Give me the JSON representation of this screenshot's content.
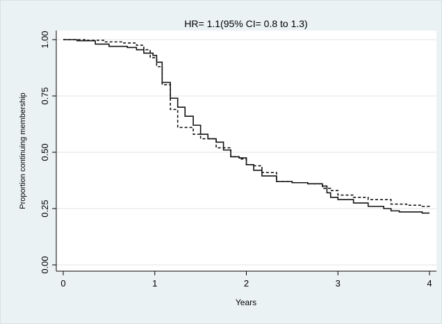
{
  "chart_data": {
    "type": "line",
    "title": "HR= 1.1(95% CI= 0.8 to 1.3)",
    "xlabel": "Years",
    "ylabel": "Proportion continuing membership",
    "xlim": [
      0,
      4
    ],
    "ylim": [
      0,
      1
    ],
    "xticks": [
      "0",
      "1",
      "2",
      "3",
      "4"
    ],
    "yticks": [
      "0.00",
      "0.25",
      "0.50",
      "0.75",
      "1.00"
    ],
    "grid": true,
    "step": true,
    "series": [
      {
        "style": "solid",
        "color": "#111111",
        "points": [
          [
            0.0,
            1.0
          ],
          [
            0.15,
            0.995
          ],
          [
            0.35,
            0.98
          ],
          [
            0.5,
            0.97
          ],
          [
            0.7,
            0.965
          ],
          [
            0.8,
            0.955
          ],
          [
            0.88,
            0.94
          ],
          [
            0.98,
            0.93
          ],
          [
            1.02,
            0.9
          ],
          [
            1.08,
            0.81
          ],
          [
            1.17,
            0.74
          ],
          [
            1.25,
            0.7
          ],
          [
            1.33,
            0.66
          ],
          [
            1.42,
            0.62
          ],
          [
            1.5,
            0.58
          ],
          [
            1.58,
            0.56
          ],
          [
            1.67,
            0.545
          ],
          [
            1.75,
            0.51
          ],
          [
            1.83,
            0.48
          ],
          [
            1.92,
            0.475
          ],
          [
            2.0,
            0.445
          ],
          [
            2.08,
            0.42
          ],
          [
            2.17,
            0.395
          ],
          [
            2.33,
            0.37
          ],
          [
            2.5,
            0.365
          ],
          [
            2.67,
            0.36
          ],
          [
            2.83,
            0.35
          ],
          [
            2.88,
            0.32
          ],
          [
            2.92,
            0.3
          ],
          [
            3.0,
            0.29
          ],
          [
            3.17,
            0.275
          ],
          [
            3.33,
            0.26
          ],
          [
            3.5,
            0.25
          ],
          [
            3.58,
            0.24
          ],
          [
            3.67,
            0.235
          ],
          [
            3.92,
            0.23
          ],
          [
            4.0,
            0.23
          ]
        ]
      },
      {
        "style": "dashed",
        "color": "#111111",
        "points": [
          [
            0.0,
            1.0
          ],
          [
            0.25,
            0.997
          ],
          [
            0.45,
            0.99
          ],
          [
            0.65,
            0.985
          ],
          [
            0.8,
            0.975
          ],
          [
            0.88,
            0.955
          ],
          [
            0.95,
            0.92
          ],
          [
            1.02,
            0.88
          ],
          [
            1.08,
            0.8
          ],
          [
            1.17,
            0.69
          ],
          [
            1.25,
            0.61
          ],
          [
            1.42,
            0.58
          ],
          [
            1.5,
            0.56
          ],
          [
            1.67,
            0.52
          ],
          [
            1.83,
            0.48
          ],
          [
            1.92,
            0.47
          ],
          [
            2.0,
            0.445
          ],
          [
            2.08,
            0.44
          ],
          [
            2.17,
            0.41
          ],
          [
            2.33,
            0.37
          ],
          [
            2.5,
            0.365
          ],
          [
            2.67,
            0.36
          ],
          [
            2.83,
            0.34
          ],
          [
            2.92,
            0.33
          ],
          [
            3.0,
            0.31
          ],
          [
            3.17,
            0.3
          ],
          [
            3.33,
            0.29
          ],
          [
            3.58,
            0.27
          ],
          [
            3.75,
            0.265
          ],
          [
            3.92,
            0.26
          ],
          [
            4.0,
            0.25
          ]
        ]
      }
    ]
  }
}
